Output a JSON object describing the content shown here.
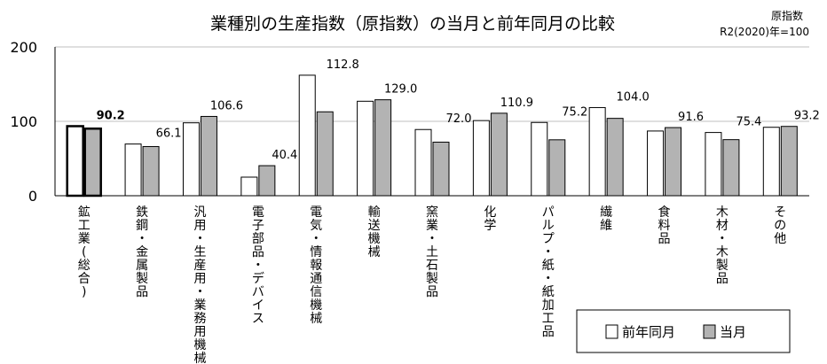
{
  "chart_data": {
    "type": "bar",
    "title": "業種別の生産指数（原指数）の当月と前年同月の比較",
    "note_lines": [
      "原指数",
      "R2(2020)年=100"
    ],
    "categories": [
      "鉱工業(総合)",
      "鉄鋼・金属製品",
      "汎用・生産用・業務用機械",
      "電子部品・デバイス",
      "電気・情報通信機械",
      "輸送機械",
      "窯業・土石製品",
      "化学",
      "パルプ・紙・紙加工品",
      "繊維",
      "食料品",
      "木材・木製品",
      "その他"
    ],
    "series": [
      {
        "name": "前年同月",
        "values": [
          93.5,
          69.5,
          98.0,
          25.0,
          162.0,
          127.0,
          89.0,
          101.0,
          98.5,
          118.5,
          87.0,
          85.0,
          92.0
        ],
        "color": "#ffffff"
      },
      {
        "name": "当月",
        "values": [
          90.2,
          66.1,
          106.6,
          40.4,
          112.8,
          129.0,
          72.0,
          110.9,
          75.2,
          104.0,
          91.6,
          75.4,
          93.2
        ],
        "color": "#b3b3b3"
      }
    ],
    "data_labels": [
      "90.2",
      "66.1",
      "106.6",
      "40.4",
      "112.8",
      "129.0",
      "72.0",
      "110.9",
      "75.2",
      "104.0",
      "91.6",
      "75.4",
      "93.2"
    ],
    "yticks": [
      "0",
      "100",
      "200"
    ],
    "ylim": [
      0,
      200
    ],
    "grid": true,
    "legend_position": "bottom-right"
  }
}
